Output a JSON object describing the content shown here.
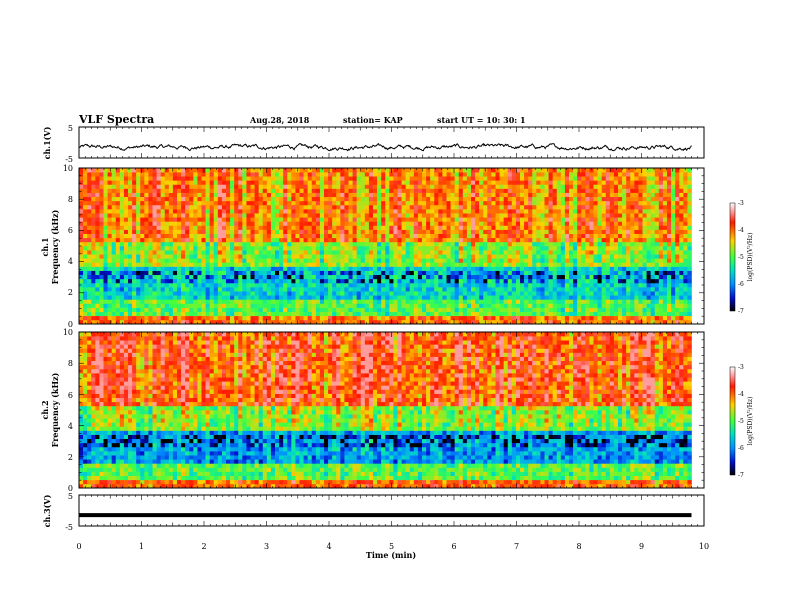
{
  "header": {
    "title": "VLF Spectra",
    "date": "Aug.28, 2018",
    "station": "station= KAP",
    "start_ut": "start  UT =   10: 30: 1"
  },
  "chart_data": [
    {
      "type": "line",
      "panel": "channel-1-waveform",
      "ylabel": "ch.1(V)",
      "ylim": [
        -5,
        5
      ],
      "yticks": [
        "5",
        "-5"
      ],
      "xlim": [
        0,
        10
      ],
      "x_extent": [
        0,
        9.8
      ],
      "y_typical_range": [
        -2.6,
        -0.4
      ],
      "color": "#000000"
    },
    {
      "type": "heatmap",
      "panel": "channel-1-spectrogram",
      "ylabel_lines": [
        "ch.1",
        "Frequency (kHz)"
      ],
      "ylim": [
        0,
        10
      ],
      "yticks": [
        "0",
        "2",
        "4",
        "6",
        "8",
        "10"
      ],
      "xlim": [
        0,
        10
      ],
      "x_extent": [
        0,
        9.8
      ],
      "colorbar": {
        "label": "log(PSD)(V²/Hz)",
        "range": [
          -7,
          -3
        ],
        "ticks": [
          "-3",
          "-4",
          "-5",
          "-6",
          "-7"
        ]
      }
    },
    {
      "type": "heatmap",
      "panel": "channel-2-spectrogram",
      "ylabel_lines": [
        "ch.2",
        "Frequency (kHz)"
      ],
      "ylim": [
        0,
        10
      ],
      "yticks": [
        "0",
        "2",
        "4",
        "6",
        "8",
        "10"
      ],
      "xlim": [
        0,
        10
      ],
      "x_extent": [
        0,
        9.8
      ],
      "colorbar": {
        "label": "log(PSD)(V²/Hz)",
        "range": [
          -7,
          -3
        ],
        "ticks": [
          "-3",
          "-4",
          "-5",
          "-6",
          "-7"
        ]
      }
    },
    {
      "type": "line",
      "panel": "channel-3-waveform",
      "ylabel": "ch.3(V)",
      "ylim": [
        -5,
        5
      ],
      "yticks": [
        "5",
        "-5"
      ],
      "xlim": [
        0,
        10
      ],
      "x_extent": [
        0,
        9.8
      ],
      "constant_value": -1.5,
      "xlabel": "Time (min)",
      "xticks": [
        "0",
        "1",
        "2",
        "3",
        "4",
        "5",
        "6",
        "7",
        "8",
        "9",
        "10"
      ],
      "color": "#000000"
    }
  ]
}
